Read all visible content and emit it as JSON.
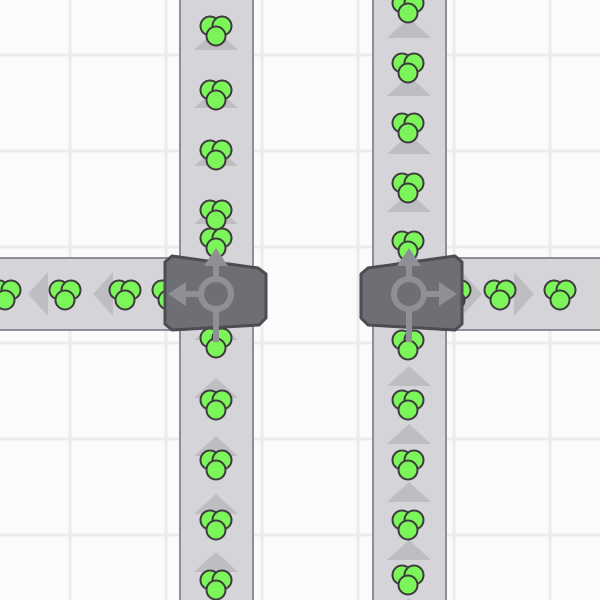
{
  "colors": {
    "background": "#fbfbfb",
    "grid_line": "#ececec",
    "belt_fill": "#d4d4d9",
    "belt_border": "#8e8e96",
    "belt_arrow": "#bdbdc2",
    "splitter_fill": "#6e6e74",
    "splitter_border": "#4c4c52",
    "splitter_symbol": "#8f8f96",
    "item_fill": "#7cf55a",
    "item_border": "#3c3c3c"
  },
  "entities": {
    "belts": [
      "belt-vertical-left",
      "belt-vertical-right",
      "belt-horizontal-left",
      "belt-horizontal-right"
    ],
    "splitters": [
      {
        "name": "splitter-left",
        "outputs": [
          "up",
          "left"
        ]
      },
      {
        "name": "splitter-right",
        "outputs": [
          "up",
          "right"
        ]
      }
    ],
    "item_shape": "green-circle-cluster"
  }
}
